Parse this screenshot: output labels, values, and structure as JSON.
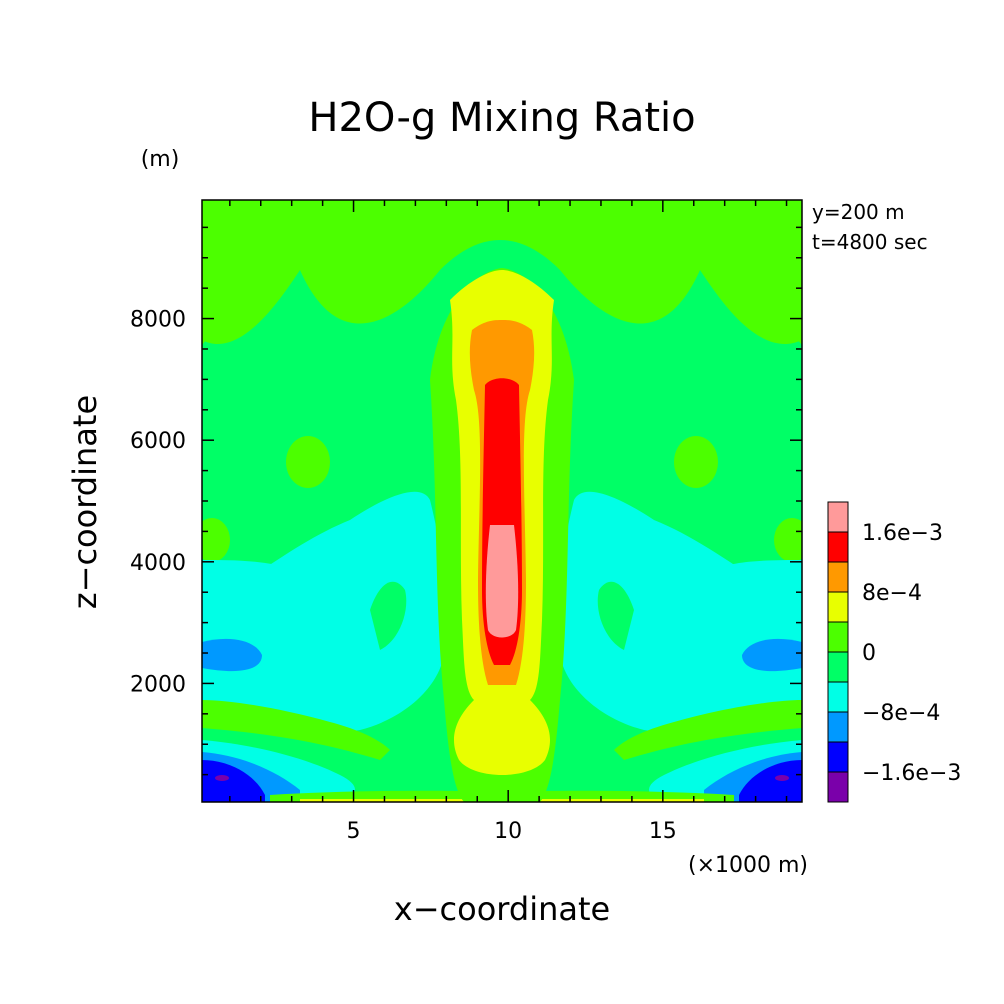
{
  "chart_data": {
    "type": "heatmap",
    "title": "H2O-g Mixing Ratio",
    "xlabel": "x−coordinate",
    "ylabel": "z−coordinate",
    "x_unit": "(×1000 m)",
    "y_unit": "(m)",
    "annotations": [
      "y=200 m",
      "t=4800 sec"
    ],
    "x_ticks": [
      {
        "value": 5,
        "label": "5"
      },
      {
        "value": 10,
        "label": "10"
      },
      {
        "value": 15,
        "label": "15"
      }
    ],
    "y_ticks": [
      {
        "value": 2000,
        "label": "2000"
      },
      {
        "value": 4000,
        "label": "4000"
      },
      {
        "value": 6000,
        "label": "6000"
      },
      {
        "value": 8000,
        "label": "8000"
      }
    ],
    "xlim": [
      0.1,
      19.5
    ],
    "ylim": [
      50,
      9950
    ],
    "x_scale": 1000,
    "grid": false,
    "colorbar": {
      "levels": [
        {
          "min": 0.0016,
          "max": 0.0024,
          "color": "#ff9a9a"
        },
        {
          "min": 0.0012,
          "max": 0.0016,
          "color": "#ff0000"
        },
        {
          "min": 0.0008,
          "max": 0.0012,
          "color": "#ff9900"
        },
        {
          "min": 0.0004,
          "max": 0.0008,
          "color": "#e8ff00"
        },
        {
          "min": 0.0,
          "max": 0.0004,
          "color": "#4cff00"
        },
        {
          "min": -0.0004,
          "max": 0.0,
          "color": "#00ff66"
        },
        {
          "min": -0.0008,
          "max": -0.0004,
          "color": "#00ffe6"
        },
        {
          "min": -0.0012,
          "max": -0.0008,
          "color": "#0099ff"
        },
        {
          "min": -0.0016,
          "max": -0.0012,
          "color": "#0000ff"
        },
        {
          "min": -0.0024,
          "max": -0.0016,
          "color": "#7a00aa"
        }
      ],
      "labels": [
        {
          "value": 0.0016,
          "label": "1.6e−3"
        },
        {
          "value": 0.0008,
          "label": "8e−4"
        },
        {
          "value": 0.0,
          "label": "0"
        },
        {
          "value": -0.0008,
          "label": "−8e−4"
        },
        {
          "value": -0.0016,
          "label": "−1.6e−3"
        }
      ]
    }
  }
}
